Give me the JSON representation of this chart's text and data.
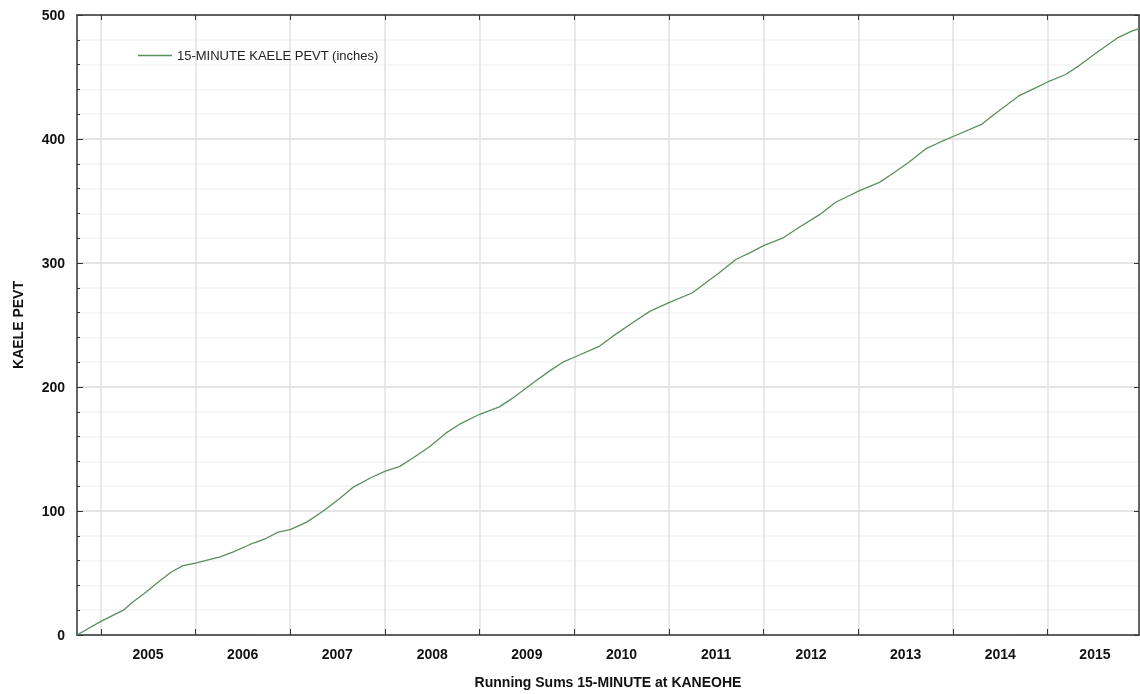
{
  "chart_data": {
    "type": "line",
    "xlabel": "Running Sums 15-MINUTE at KANEOHE",
    "ylabel": "KAELE PEVT",
    "x": [
      "2004-10-01",
      "2005-01-01",
      "2005-03-29",
      "2005-05-01",
      "2005-06-27",
      "2005-08-18",
      "2005-10-01",
      "2005-11-14",
      "2006-01-01",
      "2006-04-06",
      "2006-05-27",
      "2006-07-30",
      "2006-10-01",
      "2006-11-16",
      "2007-01-01",
      "2007-03-06",
      "2007-05-09",
      "2007-07-11",
      "2007-08-31",
      "2007-11-10",
      "2008-01-01",
      "2008-02-28",
      "2008-04-20",
      "2008-06-23",
      "2008-08-25",
      "2008-10-16",
      "2009-01-01",
      "2009-03-18",
      "2009-05-08",
      "2009-07-24",
      "2009-09-28",
      "2009-11-18",
      "2010-01-01",
      "2010-04-09",
      "2010-05-30",
      "2010-08-15",
      "2010-10-19",
      "2011-01-01",
      "2011-04-02",
      "2011-05-23",
      "2011-07-13",
      "2011-09-17",
      "2011-11-07",
      "2012-01-01",
      "2012-03-14",
      "2012-05-19",
      "2012-08-04",
      "2012-10-05",
      "2012-11-14",
      "2013-01-01",
      "2013-03-23",
      "2013-05-12",
      "2013-07-13",
      "2013-09-17",
      "2013-11-07",
      "2014-01-01",
      "2014-04-23",
      "2014-06-03",
      "2014-09-13",
      "2014-11-03",
      "2015-01-01",
      "2015-03-11",
      "2015-05-01",
      "2015-07-17",
      "2015-10-01",
      "2015-11-21",
      "2015-12-19"
    ],
    "series": [
      {
        "name": "15-MINUTE KAELE PEVT (inches)",
        "color": "#5a8f5e",
        "values": [
          0,
          11,
          20,
          26,
          35,
          44,
          51,
          56,
          58,
          63,
          67,
          73,
          78,
          83,
          85,
          91,
          100,
          110,
          119,
          127,
          132,
          136,
          143,
          152,
          163,
          170,
          178,
          184,
          191,
          203,
          213,
          220,
          224,
          233,
          241,
          252,
          261,
          268,
          276,
          284,
          292,
          303,
          308,
          314,
          320,
          329,
          339,
          349,
          353,
          358,
          365,
          372,
          381,
          392,
          397,
          402,
          412,
          419,
          435,
          440,
          446,
          452,
          459,
          471,
          482,
          487,
          489
        ]
      }
    ],
    "xlim": [
      "2004-10-01",
      "2015-12-19"
    ],
    "xticks": [
      {
        "value": "2005-01-01",
        "label": null
      },
      {
        "value": "2005-07-02",
        "label": "2005"
      },
      {
        "value": "2006-01-01",
        "label": null
      },
      {
        "value": "2006-07-02",
        "label": "2006"
      },
      {
        "value": "2007-01-01",
        "label": null
      },
      {
        "value": "2007-07-02",
        "label": "2007"
      },
      {
        "value": "2008-01-01",
        "label": null
      },
      {
        "value": "2008-07-02",
        "label": "2008"
      },
      {
        "value": "2009-01-01",
        "label": null
      },
      {
        "value": "2009-07-02",
        "label": "2009"
      },
      {
        "value": "2010-01-01",
        "label": null
      },
      {
        "value": "2010-07-02",
        "label": "2010"
      },
      {
        "value": "2011-01-01",
        "label": null
      },
      {
        "value": "2011-07-02",
        "label": "2011"
      },
      {
        "value": "2012-01-01",
        "label": null
      },
      {
        "value": "2012-07-02",
        "label": "2012"
      },
      {
        "value": "2013-01-01",
        "label": null
      },
      {
        "value": "2013-07-02",
        "label": "2013"
      },
      {
        "value": "2014-01-01",
        "label": null
      },
      {
        "value": "2014-07-02",
        "label": "2014"
      },
      {
        "value": "2015-01-01",
        "label": null
      },
      {
        "value": "2015-07-02",
        "label": "2015"
      }
    ],
    "ylim": [
      0,
      500
    ],
    "yticks": [
      0,
      {
        "value": 20,
        "label": null
      },
      {
        "value": 40,
        "label": null
      },
      {
        "value": 60,
        "label": null
      },
      {
        "value": 80,
        "label": null
      },
      100,
      {
        "value": 120,
        "label": null
      },
      {
        "value": 140,
        "label": null
      },
      {
        "value": 160,
        "label": null
      },
      {
        "value": 180,
        "label": null
      },
      200,
      {
        "value": 220,
        "label": null
      },
      {
        "value": 240,
        "label": null
      },
      {
        "value": 260,
        "label": null
      },
      {
        "value": 280,
        "label": null
      },
      300,
      {
        "value": 320,
        "label": null
      },
      {
        "value": 340,
        "label": null
      },
      {
        "value": 360,
        "label": null
      },
      {
        "value": 380,
        "label": null
      },
      400,
      {
        "value": 420,
        "label": null
      },
      {
        "value": 440,
        "label": null
      },
      {
        "value": 460,
        "label": null
      },
      {
        "value": 480,
        "label": null
      },
      500
    ],
    "grid": true,
    "legend": "top left"
  }
}
